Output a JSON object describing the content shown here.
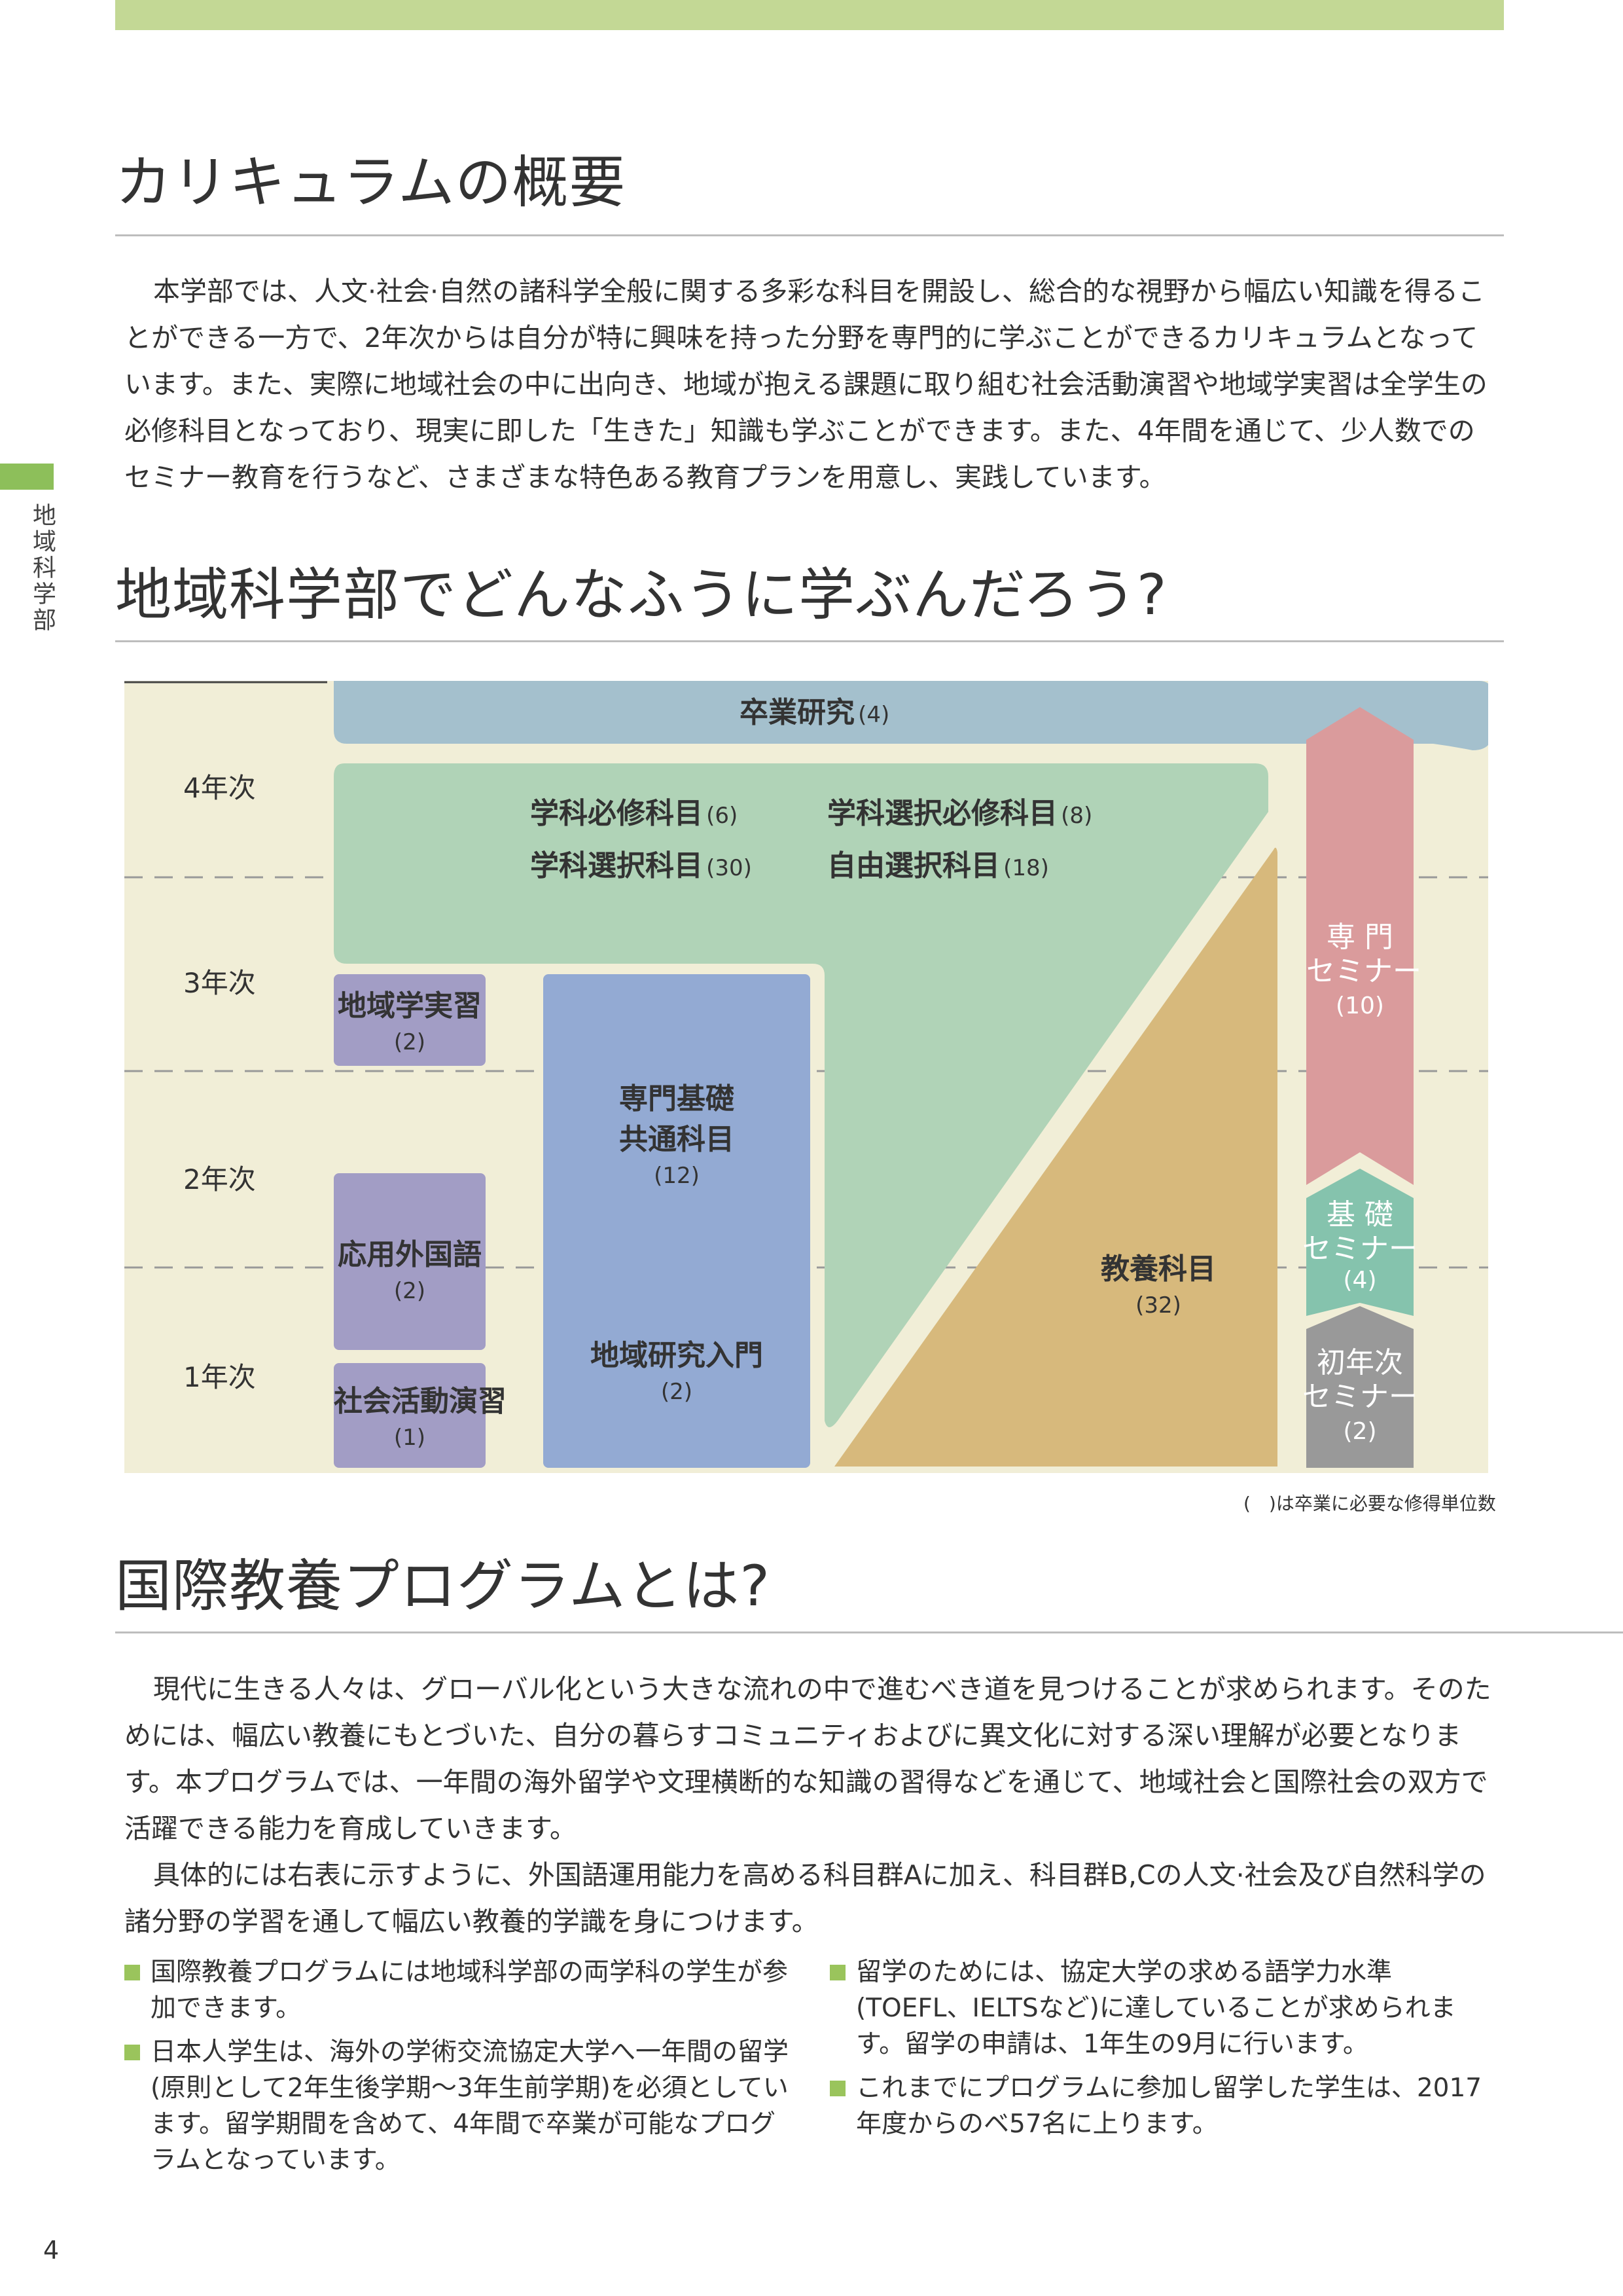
{
  "sidebar": {
    "label": "地域科学部"
  },
  "section1": {
    "title": "カリキュラムの概要",
    "body": "本学部では、人文·社会·自然の諸科学全般に関する多彩な科目を開設し、総合的な視野から幅広い知識を得ることができる一方で、2年次からは自分が特に興味を持った分野を専門的に学ぶことができるカリキュラムとなっています。また、実際に地域社会の中に出向き、地域が抱える課題に取り組む社会活動演習や地域学実習は全学生の必修科目となっており、現実に即した「生きた」知識も学ぶことができます。また、4年間を通じて、少人数でのセミナー教育を行うなど、さまざまな特色ある教育プランを用意し、実践しています。"
  },
  "section2": {
    "title": "地域科学部でどんなふうに学ぶんだろう?",
    "years": [
      "4年次",
      "3年次",
      "2年次",
      "1年次"
    ],
    "graduation": {
      "label": "卒業研究",
      "credits": "(4)"
    },
    "green": {
      "r1c1": {
        "label": "学科必修科目",
        "credits": "(6)"
      },
      "r1c2": {
        "label": "学科選択必修科目",
        "credits": "(8)"
      },
      "r2c1": {
        "label": "学科選択科目",
        "credits": "(30)"
      },
      "r2c2": {
        "label": "自由選択科目",
        "credits": "(18)"
      }
    },
    "chiiki_jisshu": {
      "label": "地域学実習",
      "credits": "(2)"
    },
    "ouyou": {
      "label": "応用外国語",
      "credits": "(2)"
    },
    "shakai": {
      "label": "社会活動演習",
      "credits": "(1)"
    },
    "senmon_kiso": {
      "line1": "専門基礎",
      "line2": "共通科目",
      "credits": "(12)"
    },
    "chiiki_kenkyu": {
      "label": "地域研究入門",
      "credits": "(2)"
    },
    "kyouyou": {
      "label": "教養科目",
      "credits": "(32)"
    },
    "senmon_seminar": {
      "line1": "専 門",
      "line2": "セミナー",
      "credits": "(10)"
    },
    "kiso_seminar": {
      "line1": "基 礎",
      "line2": "セミナー",
      "credits": "(4)"
    },
    "shonenji_seminar": {
      "line1": "初年次",
      "line2": "セミナー",
      "credits": "(2)"
    },
    "note": "(　)は卒業に必要な修得単位数",
    "colors": {
      "graduation": "#a4c0cd",
      "green": "#b0d3b7",
      "purple": "#a29dc5",
      "blue": "#93aad3",
      "tan": "#d7b97c",
      "pink": "#da9b9c",
      "teal": "#85c3ad",
      "gray": "#999999",
      "bg": "#f1eed7"
    }
  },
  "section3": {
    "title": "国際教養プログラムとは?",
    "para1": "現代に生きる人々は、グローバル化という大きな流れの中で進むべき道を見つけることが求められます。そのためには、幅広い教養にもとづいた、自分の暮らすコミュニティおよびに異文化に対する深い理解が必要となります。本プログラムでは、一年間の海外留学や文理横断的な知識の習得などを通じて、地域社会と国際社会の双方で活躍できる能力を育成していきます。",
    "para2": "具体的には右表に示すように、外国語運用能力を高める科目群Aに加え、科目群B,Cの人文·社会及び自然科学の諸分野の学習を通して幅広い教養的学識を身につけます。",
    "bullets_left": [
      "国際教養プログラムには地域科学部の両学科の学生が参加できます。",
      "日本人学生は、海外の学術交流協定大学へ一年間の留学(原則として2年生後学期〜3年生前学期)を必須としています。留学期間を含めて、4年間で卒業が可能なプログラムとなっています。"
    ],
    "bullets_right": [
      "留学のためには、協定大学の求める語学力水準(TOEFL、IELTSなど)に達していることが求められます。留学の申請は、1年生の9月に行います。",
      "これまでにプログラムに参加し留学した学生は、2017年度からのベ57名に上ります。"
    ]
  },
  "page_number": "4"
}
